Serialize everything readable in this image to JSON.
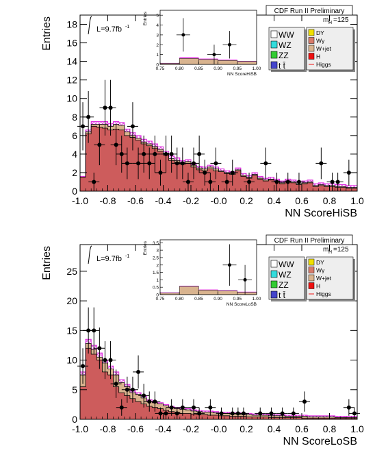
{
  "chart_data": [
    {
      "type": "histogram",
      "title": "CDF Run II Preliminary",
      "xlabel": "NN ScoreHiSB",
      "ylabel": "Entries",
      "xlim": [
        -1.0,
        1.0
      ],
      "ylim": [
        0,
        19
      ],
      "x_ticks": [
        "-1.0",
        "-0.8",
        "-0.6",
        "-0.4",
        "-0.2",
        "-0.0",
        "0.2",
        "0.4",
        "0.6",
        "0.8",
        "1.0"
      ],
      "y_ticks": [
        "0",
        "2",
        "4",
        "6",
        "8",
        "10",
        "12",
        "14",
        "16",
        "18"
      ],
      "luminosity_label": "L=9.7fb",
      "luminosity_exponent": "-1",
      "mass_label": "m",
      "mass_sub": "H",
      "mass_value": "=125",
      "legend_left": [
        {
          "label": "WW",
          "color": "#ffffff"
        },
        {
          "label": "WZ",
          "color": "#33dddd"
        },
        {
          "label": "ZZ",
          "color": "#33cc33"
        },
        {
          "label": "t t̄",
          "color": "#4444cc"
        }
      ],
      "legend_right": [
        {
          "label": "DY",
          "color": "#f0e000"
        },
        {
          "label": "Wγ",
          "color": "#d77b6a"
        },
        {
          "label": "W+jet",
          "color": "#d9b48f"
        },
        {
          "label": "H",
          "color": "#ee1111"
        },
        {
          "label": "Higgs",
          "color": "#ee1111"
        }
      ],
      "bin_edges_start": -1.0,
      "bin_width": 0.04,
      "background_fill_values": [
        1.5,
        6.2,
        7.0,
        6.9,
        6.8,
        6.6,
        6.7,
        6.6,
        6.0,
        5.8,
        5.5,
        5.1,
        4.9,
        4.6,
        4.3,
        3.9,
        3.3,
        3.1,
        2.9,
        3.0,
        2.6,
        2.3,
        2.2,
        2.4,
        2.2,
        2.1,
        1.9,
        1.8,
        2.2,
        1.6,
        1.4,
        1.7,
        1.3,
        1.1,
        1.2,
        1.0,
        0.8,
        1.0,
        0.9,
        0.7,
        0.8,
        0.9,
        0.5,
        0.6,
        0.5,
        0.5,
        0.4,
        0.4,
        0.3,
        0.3
      ],
      "wjet_fill_values": [
        1.5,
        6.4,
        7.2,
        7.2,
        7.2,
        7.0,
        7.2,
        7.1,
        6.4,
        6.0,
        5.7,
        5.3,
        5.1,
        4.8,
        4.5,
        4.1,
        3.5,
        3.3,
        3.1,
        3.2,
        2.8,
        2.5,
        2.4,
        2.6,
        2.4,
        2.2,
        2.0,
        1.9,
        2.3,
        1.7,
        1.5,
        1.8,
        1.4,
        1.2,
        1.3,
        1.1,
        0.9,
        1.1,
        1.0,
        0.8,
        0.9,
        1.0,
        0.6,
        0.7,
        0.6,
        0.6,
        0.5,
        0.5,
        0.4,
        0.4
      ],
      "total_prediction_values": [
        1.6,
        6.6,
        7.5,
        7.5,
        7.5,
        7.3,
        7.5,
        7.4,
        6.7,
        6.3,
        6.0,
        5.6,
        5.4,
        5.1,
        4.8,
        4.3,
        3.8,
        3.6,
        3.3,
        3.4,
        3.0,
        2.7,
        2.6,
        2.8,
        2.6,
        2.4,
        2.2,
        2.1,
        2.5,
        1.9,
        1.7,
        2.0,
        1.6,
        1.4,
        1.5,
        1.3,
        1.1,
        1.3,
        1.2,
        1.0,
        1.1,
        1.2,
        0.8,
        0.9,
        0.8,
        0.8,
        0.7,
        0.7,
        0.6,
        0.6
      ],
      "data_points": [
        {
          "x": -0.98,
          "y": 7,
          "err": 2.6
        },
        {
          "x": -0.94,
          "y": 8,
          "err": 2.8
        },
        {
          "x": -0.9,
          "y": 1,
          "err": 1.0
        },
        {
          "x": -0.86,
          "y": 5,
          "err": 2.2
        },
        {
          "x": -0.82,
          "y": 9,
          "err": 3.0
        },
        {
          "x": -0.78,
          "y": 9,
          "err": 3.0
        },
        {
          "x": -0.74,
          "y": 5,
          "err": 2.2
        },
        {
          "x": -0.7,
          "y": 4,
          "err": 2.0
        },
        {
          "x": -0.66,
          "y": 3,
          "err": 1.7
        },
        {
          "x": -0.62,
          "y": 7,
          "err": 2.6
        },
        {
          "x": -0.58,
          "y": 3,
          "err": 1.7
        },
        {
          "x": -0.54,
          "y": 4,
          "err": 2.0
        },
        {
          "x": -0.5,
          "y": 3,
          "err": 1.7
        },
        {
          "x": -0.46,
          "y": 4,
          "err": 2.0
        },
        {
          "x": -0.42,
          "y": 2,
          "err": 1.4
        },
        {
          "x": -0.38,
          "y": 4,
          "err": 2.0
        },
        {
          "x": -0.34,
          "y": 4,
          "err": 2.0
        },
        {
          "x": -0.3,
          "y": 3,
          "err": 1.7
        },
        {
          "x": -0.26,
          "y": 3,
          "err": 1.7
        },
        {
          "x": -0.22,
          "y": 1,
          "err": 1.0
        },
        {
          "x": -0.18,
          "y": 3,
          "err": 1.7
        },
        {
          "x": -0.14,
          "y": 4,
          "err": 2.0
        },
        {
          "x": -0.1,
          "y": 2,
          "err": 1.4
        },
        {
          "x": -0.06,
          "y": 1,
          "err": 1.0
        },
        {
          "x": -0.02,
          "y": 3,
          "err": 1.7
        },
        {
          "x": 0.06,
          "y": 1,
          "err": 1.0
        },
        {
          "x": 0.1,
          "y": 2,
          "err": 1.4
        },
        {
          "x": 0.22,
          "y": 1,
          "err": 1.0
        },
        {
          "x": 0.34,
          "y": 3,
          "err": 1.7
        },
        {
          "x": 0.42,
          "y": 1,
          "err": 1.0
        },
        {
          "x": 0.5,
          "y": 1,
          "err": 1.0
        },
        {
          "x": 0.58,
          "y": 1,
          "err": 1.0
        },
        {
          "x": 0.74,
          "y": 3,
          "err": 1.7
        },
        {
          "x": 0.82,
          "y": 1,
          "err": 1.0
        },
        {
          "x": 0.86,
          "y": 1,
          "err": 1.0
        },
        {
          "x": 0.94,
          "y": 2,
          "err": 1.4
        }
      ],
      "inset": {
        "xlabel": "NN ScoreHiSB",
        "ylabel": "Entries",
        "xlim": [
          0.75,
          1.0
        ],
        "ylim": [
          0,
          5.5
        ],
        "x_ticks": [
          "0.75",
          "0.80",
          "0.85",
          "0.90",
          "0.95",
          "1.00"
        ],
        "y_ticks": [
          "0",
          "1",
          "2",
          "3",
          "4",
          "5"
        ],
        "bins": [
          0.75,
          0.8,
          0.85,
          0.9,
          0.95,
          1.0
        ],
        "background": [
          0.1,
          0.6,
          0.5,
          0.4,
          0.3
        ],
        "total": [
          0.15,
          0.75,
          0.6,
          0.5,
          0.35
        ],
        "data_points": [
          {
            "x": 0.81,
            "y": 3,
            "err": 1.7
          },
          {
            "x": 0.89,
            "y": 1,
            "err": 1.0
          },
          {
            "x": 0.93,
            "y": 2,
            "err": 1.4
          }
        ]
      }
    },
    {
      "type": "histogram",
      "title": "CDF Run II Preliminary",
      "xlabel": "NN ScoreLoSB",
      "ylabel": "Entries",
      "xlim": [
        -1.0,
        1.0
      ],
      "ylim": [
        0,
        29.5
      ],
      "x_ticks": [
        "-1.0",
        "-0.8",
        "-0.6",
        "-0.4",
        "-0.2",
        "-0.0",
        "0.2",
        "0.4",
        "0.6",
        "0.8",
        "1.0"
      ],
      "y_ticks": [
        "0",
        "5",
        "10",
        "15",
        "20",
        "25"
      ],
      "luminosity_label": "L=9.7fb",
      "luminosity_exponent": "-1",
      "mass_label": "m",
      "mass_sub": "H",
      "mass_value": "=125",
      "legend_left": [
        {
          "label": "WW",
          "color": "#ffffff"
        },
        {
          "label": "WZ",
          "color": "#33dddd"
        },
        {
          "label": "ZZ",
          "color": "#33cc33"
        },
        {
          "label": "t t̄",
          "color": "#4444cc"
        }
      ],
      "legend_right": [
        {
          "label": "DY",
          "color": "#f0e000"
        },
        {
          "label": "Wγ",
          "color": "#d77b6a"
        },
        {
          "label": "W+jet",
          "color": "#d9b48f"
        },
        {
          "label": "H",
          "color": "#ee1111"
        },
        {
          "label": "Higgs",
          "color": "#ee1111"
        }
      ],
      "bin_edges_start": -1.0,
      "bin_width": 0.04,
      "background_fill_values": [
        5.5,
        12.0,
        11.0,
        10.0,
        8.0,
        7.5,
        5.5,
        4.5,
        4.0,
        3.5,
        3.0,
        2.6,
        2.2,
        2.0,
        1.8,
        1.5,
        1.3,
        1.2,
        1.0,
        1.0,
        0.9,
        0.8,
        0.8,
        0.7,
        0.7,
        0.6,
        0.6,
        0.5,
        0.5,
        0.5,
        0.4,
        0.4,
        0.4,
        0.4,
        0.3,
        0.3,
        0.3,
        0.3,
        0.3,
        0.3,
        0.2,
        0.2,
        0.2,
        0.2,
        0.2,
        0.2,
        0.2,
        0.2,
        0.2,
        0.2
      ],
      "wjet_fill_values": [
        7.5,
        12.8,
        11.8,
        10.5,
        9.5,
        8.5,
        7.5,
        6.2,
        5.5,
        4.5,
        4.2,
        3.6,
        3.0,
        2.8,
        2.6,
        2.3,
        2.0,
        1.8,
        1.7,
        1.6,
        1.4,
        1.3,
        1.2,
        1.2,
        1.1,
        1.0,
        1.0,
        0.9,
        0.9,
        0.8,
        0.8,
        0.7,
        0.7,
        0.7,
        0.6,
        0.6,
        0.6,
        0.5,
        0.5,
        0.5,
        0.5,
        0.4,
        0.4,
        0.4,
        0.4,
        0.4,
        0.3,
        0.3,
        0.3,
        0.3
      ],
      "total_prediction_values": [
        8.0,
        13.5,
        12.5,
        11.2,
        10.0,
        9.0,
        8.0,
        6.7,
        5.9,
        4.9,
        4.5,
        3.9,
        3.3,
        3.0,
        2.8,
        2.5,
        2.2,
        2.0,
        1.9,
        1.8,
        1.6,
        1.5,
        1.4,
        1.4,
        1.3,
        1.2,
        1.2,
        1.1,
        1.1,
        1.0,
        1.0,
        0.9,
        0.9,
        0.9,
        0.8,
        0.8,
        0.8,
        0.7,
        0.7,
        0.7,
        0.7,
        0.6,
        0.6,
        0.6,
        0.6,
        0.6,
        0.5,
        0.5,
        0.5,
        0.5
      ],
      "data_points": [
        {
          "x": -0.98,
          "y": 9,
          "err": 3.0
        },
        {
          "x": -0.94,
          "y": 15,
          "err": 3.9
        },
        {
          "x": -0.9,
          "y": 15,
          "err": 3.9
        },
        {
          "x": -0.86,
          "y": 12,
          "err": 3.5
        },
        {
          "x": -0.82,
          "y": 10,
          "err": 3.2
        },
        {
          "x": -0.78,
          "y": 10,
          "err": 3.2
        },
        {
          "x": -0.74,
          "y": 6,
          "err": 2.4
        },
        {
          "x": -0.7,
          "y": 2,
          "err": 1.4
        },
        {
          "x": -0.66,
          "y": 5,
          "err": 2.2
        },
        {
          "x": -0.62,
          "y": 5,
          "err": 2.2
        },
        {
          "x": -0.58,
          "y": 8,
          "err": 2.8
        },
        {
          "x": -0.54,
          "y": 4,
          "err": 2.0
        },
        {
          "x": -0.5,
          "y": 3,
          "err": 1.7
        },
        {
          "x": -0.46,
          "y": 3,
          "err": 1.7
        },
        {
          "x": -0.42,
          "y": 1,
          "err": 1.0
        },
        {
          "x": -0.38,
          "y": 1,
          "err": 1.0
        },
        {
          "x": -0.34,
          "y": 2,
          "err": 1.4
        },
        {
          "x": -0.3,
          "y": 1,
          "err": 1.0
        },
        {
          "x": -0.26,
          "y": 2,
          "err": 1.4
        },
        {
          "x": -0.18,
          "y": 2,
          "err": 1.4
        },
        {
          "x": -0.14,
          "y": 1,
          "err": 1.0
        },
        {
          "x": -0.06,
          "y": 2,
          "err": 1.4
        },
        {
          "x": 0.02,
          "y": 1,
          "err": 1.0
        },
        {
          "x": 0.1,
          "y": 1,
          "err": 1.0
        },
        {
          "x": 0.14,
          "y": 1,
          "err": 1.0
        },
        {
          "x": 0.18,
          "y": 1,
          "err": 1.0
        },
        {
          "x": 0.3,
          "y": 1,
          "err": 1.0
        },
        {
          "x": 0.38,
          "y": 1,
          "err": 1.0
        },
        {
          "x": 0.46,
          "y": 1,
          "err": 1.0
        },
        {
          "x": 0.54,
          "y": 1,
          "err": 1.0
        },
        {
          "x": 0.62,
          "y": 3,
          "err": 1.7
        },
        {
          "x": 0.94,
          "y": 2,
          "err": 1.4
        },
        {
          "x": 0.98,
          "y": 1,
          "err": 1.0
        }
      ],
      "inset": {
        "xlabel": "NN ScoreLoSB",
        "ylabel": "Entries",
        "xlim": [
          0.75,
          1.0
        ],
        "ylim": [
          0,
          3.7
        ],
        "x_ticks": [
          "0.75",
          "0.80",
          "0.85",
          "0.90",
          "0.95",
          "1.00"
        ],
        "y_ticks": [
          "0",
          "0.5",
          "1",
          "1.5",
          "2",
          "2.5",
          "3",
          "3.5"
        ],
        "bins": [
          0.75,
          0.8,
          0.85,
          0.9,
          0.95,
          1.0
        ],
        "background": [
          0.1,
          0.55,
          0.3,
          0.25,
          0.15
        ],
        "total": [
          0.15,
          0.6,
          0.35,
          0.3,
          0.2
        ],
        "data_points": [
          {
            "x": 0.93,
            "y": 2,
            "err": 1.4
          },
          {
            "x": 0.97,
            "y": 1,
            "err": 1.0
          }
        ]
      }
    }
  ]
}
